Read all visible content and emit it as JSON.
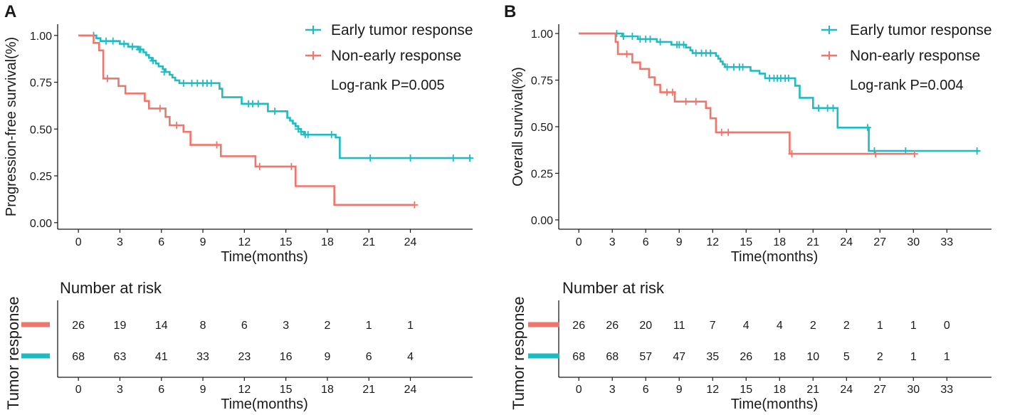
{
  "colors": {
    "early": "#1ebcc2",
    "non_early": "#ef766c",
    "axis": "#1a1a1a"
  },
  "chart_data": [
    {
      "panel": "A",
      "type": "line",
      "subtype": "kaplan-meier",
      "xlabel": "Time(months)",
      "ylabel": "Progression-free survival(%)",
      "xlim": [
        -1.5,
        28.5
      ],
      "ylim": [
        -0.035,
        1.06
      ],
      "xticks": [
        0,
        3,
        6,
        9,
        12,
        15,
        18,
        21,
        24
      ],
      "yticks": [
        0,
        0.25,
        0.5,
        0.75,
        1.0
      ],
      "ytick_labels": [
        "0.00",
        "0.25",
        "0.50",
        "0.75",
        "1.00"
      ],
      "legend": [
        "Early tumor response",
        "Non-early response"
      ],
      "legend_position": "top-right",
      "pvalue": "Log-rank P=0.005",
      "series": [
        {
          "name": "Early tumor response",
          "color": "#1ebcc2",
          "steps": [
            [
              0,
              1.0
            ],
            [
              1.3,
              0.985
            ],
            [
              1.6,
              0.97
            ],
            [
              3.0,
              0.955
            ],
            [
              3.6,
              0.94
            ],
            [
              4.3,
              0.925
            ],
            [
              4.7,
              0.91
            ],
            [
              4.9,
              0.895
            ],
            [
              5.1,
              0.88
            ],
            [
              5.3,
              0.865
            ],
            [
              5.6,
              0.85
            ],
            [
              5.8,
              0.835
            ],
            [
              6.1,
              0.82
            ],
            [
              6.3,
              0.805
            ],
            [
              6.6,
              0.79
            ],
            [
              6.8,
              0.775
            ],
            [
              7.0,
              0.76
            ],
            [
              7.3,
              0.745
            ],
            [
              10.2,
              0.715
            ],
            [
              10.4,
              0.67
            ],
            [
              11.8,
              0.635
            ],
            [
              13.7,
              0.595
            ],
            [
              15.1,
              0.56
            ],
            [
              15.3,
              0.545
            ],
            [
              15.5,
              0.53
            ],
            [
              15.7,
              0.515
            ],
            [
              15.9,
              0.5
            ],
            [
              16.1,
              0.485
            ],
            [
              16.3,
              0.47
            ],
            [
              18.6,
              0.455
            ],
            [
              18.9,
              0.345
            ],
            [
              28.4,
              0.345
            ]
          ],
          "censors": [
            [
              1.1,
              1.0
            ],
            [
              2.0,
              0.97
            ],
            [
              2.5,
              0.97
            ],
            [
              3.3,
              0.955
            ],
            [
              3.9,
              0.94
            ],
            [
              4.4,
              0.925
            ],
            [
              4.5,
              0.925
            ],
            [
              5.4,
              0.865
            ],
            [
              6.2,
              0.805
            ],
            [
              7.6,
              0.745
            ],
            [
              8.2,
              0.745
            ],
            [
              8.6,
              0.745
            ],
            [
              9.0,
              0.745
            ],
            [
              9.3,
              0.745
            ],
            [
              9.6,
              0.745
            ],
            [
              12.3,
              0.635
            ],
            [
              12.6,
              0.635
            ],
            [
              13.0,
              0.635
            ],
            [
              14.2,
              0.595
            ],
            [
              15.9,
              0.5
            ],
            [
              16.1,
              0.485
            ],
            [
              16.4,
              0.47
            ],
            [
              16.6,
              0.47
            ],
            [
              18.3,
              0.47
            ],
            [
              21.1,
              0.345
            ],
            [
              24.0,
              0.345
            ],
            [
              27.1,
              0.345
            ],
            [
              28.3,
              0.345
            ]
          ]
        },
        {
          "name": "Non-early response",
          "color": "#ef766c",
          "steps": [
            [
              0,
              1.0
            ],
            [
              1.1,
              0.96
            ],
            [
              1.5,
              0.92
            ],
            [
              1.8,
              0.77
            ],
            [
              2.9,
              0.73
            ],
            [
              3.4,
              0.69
            ],
            [
              4.8,
              0.65
            ],
            [
              5.1,
              0.61
            ],
            [
              6.3,
              0.565
            ],
            [
              6.6,
              0.52
            ],
            [
              7.6,
              0.485
            ],
            [
              8.1,
              0.415
            ],
            [
              10.3,
              0.355
            ],
            [
              12.8,
              0.3
            ],
            [
              15.7,
              0.195
            ],
            [
              18.5,
              0.095
            ],
            [
              24.3,
              0.095
            ]
          ],
          "censors": [
            [
              2.1,
              0.77
            ],
            [
              5.9,
              0.61
            ],
            [
              7.1,
              0.52
            ],
            [
              10.0,
              0.415
            ],
            [
              13.1,
              0.3
            ],
            [
              15.4,
              0.3
            ],
            [
              24.3,
              0.095
            ]
          ]
        }
      ],
      "risk_table": {
        "title": "Number at risk",
        "strata_title": "Tumor response",
        "xlabel": "Time(months)",
        "times": [
          0,
          3,
          6,
          9,
          12,
          15,
          18,
          21,
          24
        ],
        "rows": [
          {
            "name": "Non-early response",
            "color": "#ef766c",
            "values": [
              "26",
              "19",
              "14",
              "8",
              "6",
              "3",
              "2",
              "1",
              "1"
            ]
          },
          {
            "name": "Early tumor response",
            "color": "#1ebcc2",
            "values": [
              "68",
              "63",
              "41",
              "33",
              "23",
              "16",
              "9",
              "6",
              "4"
            ]
          }
        ]
      }
    },
    {
      "panel": "B",
      "type": "line",
      "subtype": "kaplan-meier",
      "xlabel": "Time(months)",
      "ylabel": "Overall survival(%)",
      "xlim": [
        -1.8,
        37.0
      ],
      "ylim": [
        -0.05,
        1.05
      ],
      "xticks": [
        0,
        3,
        6,
        9,
        12,
        15,
        18,
        21,
        24,
        27,
        30,
        33
      ],
      "yticks": [
        0,
        0.25,
        0.5,
        0.75,
        1.0
      ],
      "ytick_labels": [
        "0.00",
        "0.25",
        "0.50",
        "0.75",
        "1.00"
      ],
      "legend": [
        "Early tumor response",
        "Non-early response"
      ],
      "legend_position": "top-right",
      "pvalue": "Log-rank P=0.004",
      "series": [
        {
          "name": "Early tumor response",
          "color": "#1ebcc2",
          "steps": [
            [
              0,
              1.0
            ],
            [
              3.9,
              0.985
            ],
            [
              5.3,
              0.97
            ],
            [
              7.0,
              0.955
            ],
            [
              8.3,
              0.94
            ],
            [
              9.6,
              0.925
            ],
            [
              10.0,
              0.91
            ],
            [
              10.2,
              0.895
            ],
            [
              12.3,
              0.88
            ],
            [
              12.5,
              0.865
            ],
            [
              12.7,
              0.85
            ],
            [
              12.9,
              0.835
            ],
            [
              13.1,
              0.82
            ],
            [
              15.4,
              0.8
            ],
            [
              16.2,
              0.785
            ],
            [
              16.7,
              0.76
            ],
            [
              19.4,
              0.72
            ],
            [
              19.8,
              0.655
            ],
            [
              21.0,
              0.6
            ],
            [
              23.2,
              0.495
            ],
            [
              26.0,
              0.37
            ],
            [
              35.9,
              0.37
            ]
          ],
          "censors": [
            [
              3.4,
              1.0
            ],
            [
              4.0,
              0.985
            ],
            [
              4.8,
              0.985
            ],
            [
              5.5,
              0.97
            ],
            [
              6.0,
              0.97
            ],
            [
              6.4,
              0.97
            ],
            [
              7.3,
              0.955
            ],
            [
              8.8,
              0.94
            ],
            [
              9.0,
              0.94
            ],
            [
              9.4,
              0.94
            ],
            [
              10.5,
              0.895
            ],
            [
              11.0,
              0.895
            ],
            [
              11.4,
              0.895
            ],
            [
              11.8,
              0.895
            ],
            [
              13.3,
              0.82
            ],
            [
              13.9,
              0.82
            ],
            [
              14.4,
              0.82
            ],
            [
              14.7,
              0.82
            ],
            [
              17.1,
              0.76
            ],
            [
              17.5,
              0.76
            ],
            [
              17.8,
              0.76
            ],
            [
              18.1,
              0.76
            ],
            [
              18.5,
              0.76
            ],
            [
              18.8,
              0.76
            ],
            [
              21.5,
              0.6
            ],
            [
              22.3,
              0.6
            ],
            [
              22.8,
              0.6
            ],
            [
              25.9,
              0.495
            ],
            [
              26.5,
              0.37
            ],
            [
              29.3,
              0.37
            ],
            [
              35.7,
              0.37
            ]
          ]
        },
        {
          "name": "Non-early response",
          "color": "#ef766c",
          "steps": [
            [
              0,
              1.0
            ],
            [
              3.3,
              0.955
            ],
            [
              3.5,
              0.89
            ],
            [
              4.8,
              0.845
            ],
            [
              5.5,
              0.81
            ],
            [
              6.3,
              0.765
            ],
            [
              6.8,
              0.725
            ],
            [
              7.3,
              0.685
            ],
            [
              8.6,
              0.635
            ],
            [
              11.4,
              0.6
            ],
            [
              11.8,
              0.545
            ],
            [
              12.3,
              0.47
            ],
            [
              18.9,
              0.355
            ],
            [
              30.1,
              0.355
            ]
          ],
          "censors": [
            [
              4.3,
              0.89
            ],
            [
              7.9,
              0.685
            ],
            [
              8.4,
              0.685
            ],
            [
              9.6,
              0.635
            ],
            [
              10.5,
              0.635
            ],
            [
              12.8,
              0.47
            ],
            [
              13.4,
              0.47
            ],
            [
              19.1,
              0.355
            ],
            [
              26.6,
              0.355
            ],
            [
              30.1,
              0.355
            ]
          ]
        }
      ],
      "risk_table": {
        "title": "Number at risk",
        "strata_title": "Tumor response",
        "xlabel": "Time(months)",
        "times": [
          0,
          3,
          6,
          9,
          12,
          15,
          18,
          21,
          24,
          27,
          30,
          33
        ],
        "rows": [
          {
            "name": "Non-early response",
            "color": "#ef766c",
            "values": [
              "26",
              "26",
              "20",
              "11",
              "7",
              "4",
              "4",
              "2",
              "2",
              "1",
              "1",
              "0"
            ]
          },
          {
            "name": "Early tumor response",
            "color": "#1ebcc2",
            "values": [
              "68",
              "68",
              "57",
              "47",
              "35",
              "26",
              "18",
              "10",
              "5",
              "2",
              "1",
              "1"
            ]
          }
        ]
      }
    }
  ]
}
